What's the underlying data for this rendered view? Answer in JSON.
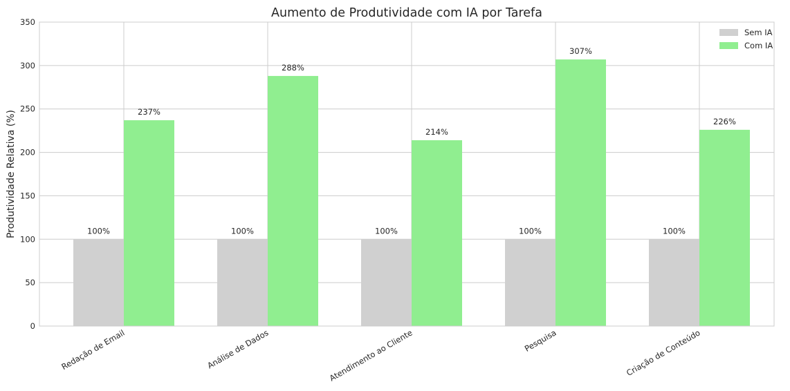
{
  "chart_data": {
    "type": "bar",
    "title": "Aumento de Produtividade com IA por Tarefa",
    "xlabel": "",
    "ylabel": "Produtividade Relativa (%)",
    "categories": [
      "Redação de Email",
      "Análise de Dados",
      "Atendimento ao Cliente",
      "Pesquisa",
      "Criação de Conteúdo"
    ],
    "series": [
      {
        "name": "Sem IA",
        "values": [
          100,
          100,
          100,
          100,
          100
        ],
        "labels": [
          "100%",
          "100%",
          "100%",
          "100%",
          "100%"
        ],
        "color": "#d0d0d0"
      },
      {
        "name": "Com IA",
        "values": [
          237,
          288,
          214,
          307,
          226
        ],
        "labels": [
          "237%",
          "288%",
          "214%",
          "307%",
          "226%"
        ],
        "color": "#90ee90"
      }
    ],
    "ylim": [
      0,
      350
    ],
    "yticks": [
      0,
      50,
      100,
      150,
      200,
      250,
      300,
      350
    ],
    "grid": true,
    "legend_position": "top-right"
  }
}
